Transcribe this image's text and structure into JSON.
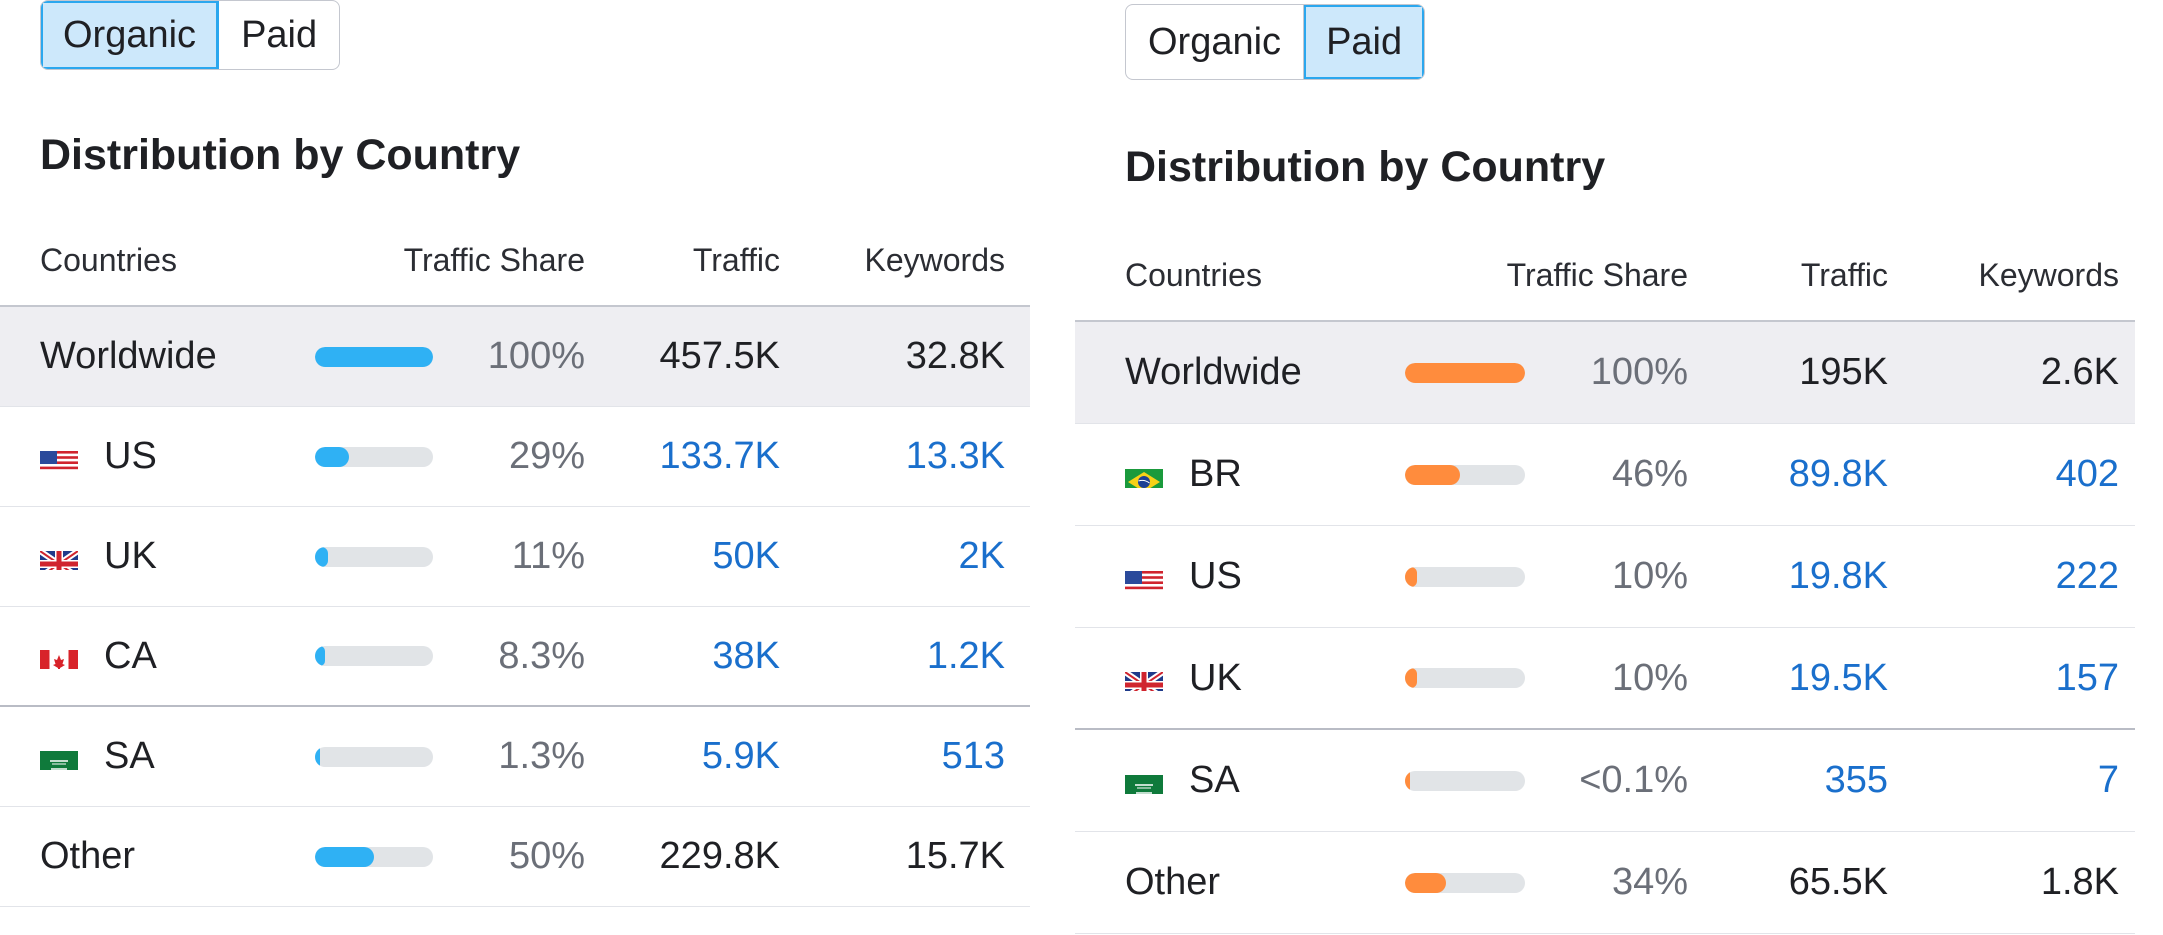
{
  "colors": {
    "organic_bar": "#2fb1f4",
    "paid_bar": "#ff8c3d",
    "link": "#1a6fcc",
    "active_toggle_bg": "#cde8fb"
  },
  "left": {
    "toggle": {
      "organic": "Organic",
      "paid": "Paid",
      "active": "organic"
    },
    "title": "Distribution by Country",
    "headers": {
      "countries": "Countries",
      "share": "Traffic Share",
      "traffic": "Traffic",
      "keywords": "Keywords"
    },
    "rows": [
      {
        "country": "Worldwide",
        "flag": null,
        "share_pct": 100,
        "share": "100%",
        "traffic": "457.5K",
        "keywords": "32.8K"
      },
      {
        "country": "US",
        "flag": "us-flag-icon",
        "share_pct": 29,
        "share": "29%",
        "traffic": "133.7K",
        "keywords": "13.3K"
      },
      {
        "country": "UK",
        "flag": "uk-flag-icon",
        "share_pct": 11,
        "share": "11%",
        "traffic": "50K",
        "keywords": "2K"
      },
      {
        "country": "CA",
        "flag": "ca-flag-icon",
        "share_pct": 8.3,
        "share": "8.3%",
        "traffic": "38K",
        "keywords": "1.2K"
      },
      {
        "country": "SA",
        "flag": "sa-flag-icon",
        "share_pct": 1.3,
        "share": "1.3%",
        "traffic": "5.9K",
        "keywords": "513"
      },
      {
        "country": "Other",
        "flag": null,
        "share_pct": 50,
        "share": "50%",
        "traffic": "229.8K",
        "keywords": "15.7K"
      }
    ]
  },
  "right": {
    "toggle": {
      "organic": "Organic",
      "paid": "Paid",
      "active": "paid"
    },
    "title": "Distribution by Country",
    "headers": {
      "countries": "Countries",
      "share": "Traffic Share",
      "traffic": "Traffic",
      "keywords": "Keywords"
    },
    "rows": [
      {
        "country": "Worldwide",
        "flag": null,
        "share_pct": 100,
        "share": "100%",
        "traffic": "195K",
        "keywords": "2.6K"
      },
      {
        "country": "BR",
        "flag": "br-flag-icon",
        "share_pct": 46,
        "share": "46%",
        "traffic": "89.8K",
        "keywords": "402"
      },
      {
        "country": "US",
        "flag": "us-flag-icon",
        "share_pct": 10,
        "share": "10%",
        "traffic": "19.8K",
        "keywords": "222"
      },
      {
        "country": "UK",
        "flag": "uk-flag-icon",
        "share_pct": 10,
        "share": "10%",
        "traffic": "19.5K",
        "keywords": "157"
      },
      {
        "country": "SA",
        "flag": "sa-flag-icon",
        "share_pct": 0.1,
        "share": "<0.1%",
        "traffic": "355",
        "keywords": "7"
      },
      {
        "country": "Other",
        "flag": null,
        "share_pct": 34,
        "share": "34%",
        "traffic": "65.5K",
        "keywords": "1.8K"
      }
    ]
  }
}
